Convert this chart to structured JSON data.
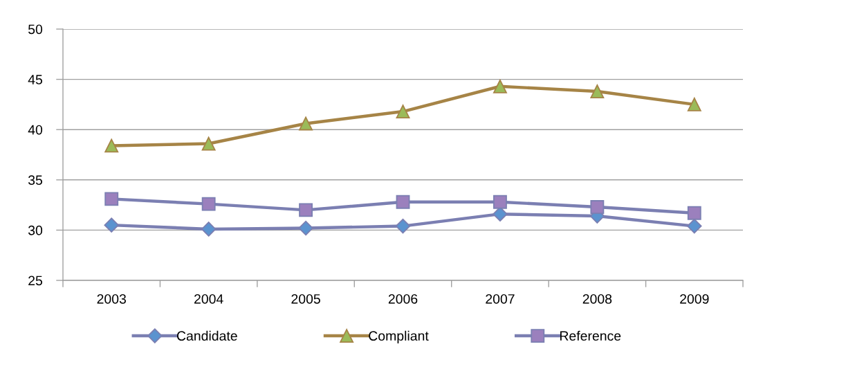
{
  "chart_data": {
    "type": "line",
    "categories": [
      "2003",
      "2004",
      "2005",
      "2006",
      "2007",
      "2008",
      "2009"
    ],
    "series": [
      {
        "name": "Candidate",
        "color": "#7b7fb2",
        "marker": "diamond",
        "colors": [
          "#5b93cf",
          "#5b93cf",
          "#5b93cf",
          "#5b93cf",
          "#5b93cf",
          "#5b93cf",
          "#5b93cf"
        ],
        "values": [
          30.5,
          30.1,
          30.2,
          30.4,
          31.6,
          31.4,
          30.4
        ]
      },
      {
        "name": "Compliant",
        "color": "#a68446",
        "marker": "triangle",
        "colors": [
          "#9bbb59",
          "#9bbb59",
          "#9bbb59",
          "#9bbb59",
          "#9bbb59",
          "#9bbb59",
          "#9bbb59"
        ],
        "values": [
          38.4,
          38.6,
          40.6,
          41.8,
          44.3,
          43.8,
          42.5
        ]
      },
      {
        "name": "Reference",
        "color": "#7b7fb2",
        "marker": "square",
        "colors": [
          "#9b80bd",
          "#9b80bd",
          "#9b80bd",
          "#9b80bd",
          "#9b80bd",
          "#9b80bd",
          "#9b80bd"
        ],
        "values": [
          33.1,
          32.6,
          32.0,
          32.8,
          32.8,
          32.3,
          31.7
        ]
      }
    ],
    "ylim": [
      25,
      50
    ],
    "yticks": [
      25,
      30,
      35,
      40,
      45,
      50
    ],
    "grid": "y",
    "legend": "bottom",
    "line_style": "solid"
  }
}
